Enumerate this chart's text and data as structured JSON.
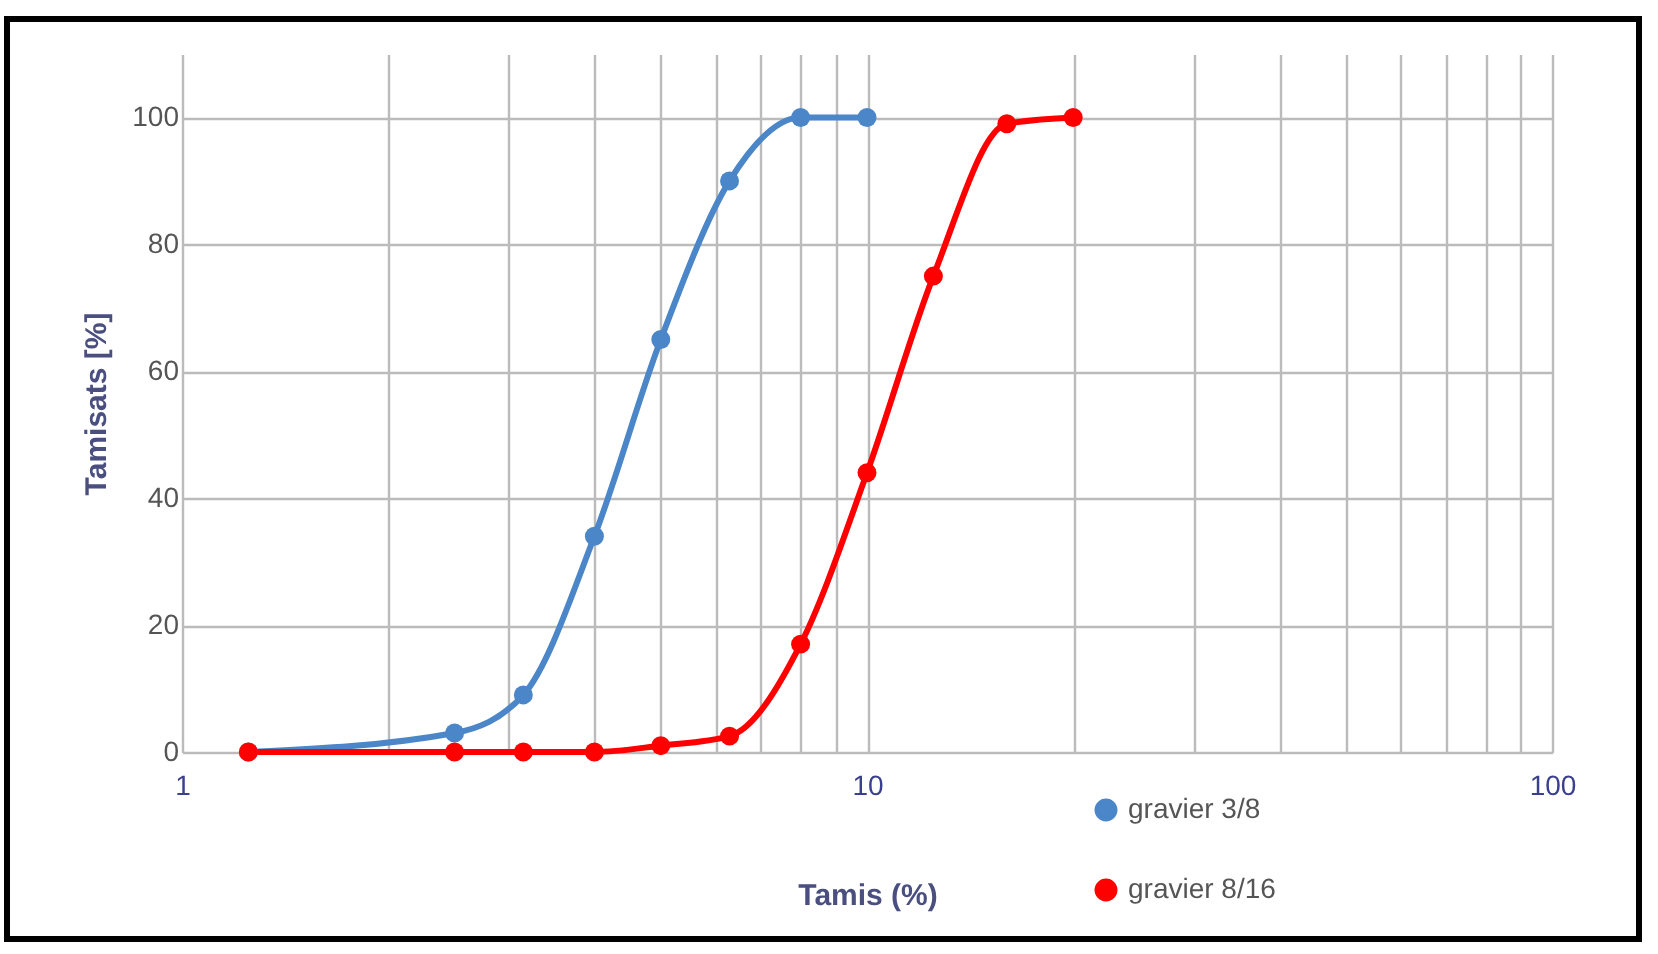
{
  "chart_data": {
    "type": "line",
    "xlabel": "Tamis (%)",
    "ylabel": "Tamisats [%]",
    "log": "x",
    "grid": true,
    "legend": "bottom right",
    "marker": "circle",
    "line_style": "solid",
    "xlim": [
      1,
      100
    ],
    "ylim": [
      0,
      110
    ],
    "xticks": [
      1,
      {
        "value": 2,
        "label": null
      },
      {
        "value": 3,
        "label": null
      },
      {
        "value": 4,
        "label": null
      },
      {
        "value": 5,
        "label": null
      },
      {
        "value": 6,
        "label": null
      },
      {
        "value": 7,
        "label": null
      },
      {
        "value": 8,
        "label": null
      },
      {
        "value": 9,
        "label": null
      },
      10,
      {
        "value": 20,
        "label": null
      },
      {
        "value": 30,
        "label": null
      },
      {
        "value": 40,
        "label": null
      },
      {
        "value": 50,
        "label": null
      },
      {
        "value": 60,
        "label": null
      },
      {
        "value": 70,
        "label": null
      },
      {
        "value": 80,
        "label": null
      },
      {
        "value": 90,
        "label": null
      },
      100
    ],
    "yticks": [
      0,
      20,
      40,
      60,
      80,
      100
    ],
    "series": [
      {
        "name": "gravier 3/8",
        "color": "#4a86c8",
        "x": [
          1.25,
          2.5,
          3.15,
          4,
          5,
          6.3,
          8,
          10
        ],
        "values": [
          0,
          3,
          9,
          34,
          65,
          90,
          100,
          100
        ]
      },
      {
        "name": "gravier 8/16",
        "color": "#ff0000",
        "x": [
          1.25,
          2.5,
          3.15,
          4,
          5,
          6.3,
          8,
          10,
          12.5,
          16,
          20
        ],
        "values": [
          0,
          0,
          0,
          0,
          1,
          2.5,
          17,
          44,
          75,
          99,
          100
        ]
      }
    ]
  }
}
